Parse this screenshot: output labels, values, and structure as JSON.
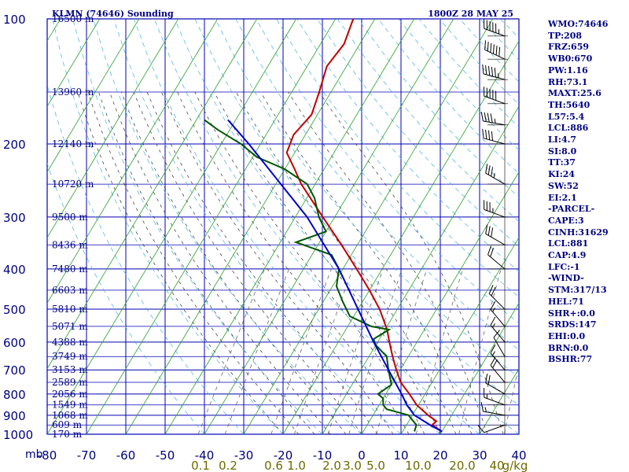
{
  "header": {
    "station_title": "KLMN (74646) Sounding",
    "valid_time": "1800Z 28 MAY 25"
  },
  "chart_data": {
    "type": "line",
    "chart_kind": "Skew-T log-P sounding",
    "y_scale": "log",
    "y_unit_label": "mb",
    "ylim": [
      1000,
      100
    ],
    "xlim": [
      -80,
      40
    ],
    "pressure_ticks": [
      "100",
      "200",
      "300",
      "400",
      "500",
      "600",
      "700",
      "800",
      "900",
      "1000"
    ],
    "temperature_ticks": [
      "-80",
      "-70",
      "-60",
      "-50",
      "-40",
      "-30",
      "-20",
      "-10",
      "0",
      "10",
      "20",
      "30",
      "40"
    ],
    "height_labels": [
      {
        "p": 100,
        "text": "16500 m"
      },
      {
        "p": 150,
        "text": "13960 m"
      },
      {
        "p": 200,
        "text": "12140 m"
      },
      {
        "p": 250,
        "text": "10720 m"
      },
      {
        "p": 300,
        "text": "9500 m"
      },
      {
        "p": 350,
        "text": "8436 m"
      },
      {
        "p": 400,
        "text": "7480 m"
      },
      {
        "p": 450,
        "text": "6603 m"
      },
      {
        "p": 500,
        "text": "5810 m"
      },
      {
        "p": 550,
        "text": "5071 m"
      },
      {
        "p": 600,
        "text": "4388 m"
      },
      {
        "p": 650,
        "text": "3749 m"
      },
      {
        "p": 700,
        "text": "3153 m"
      },
      {
        "p": 750,
        "text": "2589 m"
      },
      {
        "p": 800,
        "text": "2056 m"
      },
      {
        "p": 850,
        "text": "1549 m"
      },
      {
        "p": 900,
        "text": "1068 m"
      },
      {
        "p": 950,
        "text": "609 m"
      },
      {
        "p": 1000,
        "text": "170 m"
      }
    ],
    "mixing_ratio_labels": [
      "0.1",
      "0.2",
      "0.6",
      "1.0",
      "2.0",
      "3.0",
      "5.0",
      "10.0",
      "20.0",
      "40",
      "g/kg"
    ],
    "colors": {
      "background": "#ffffff",
      "grid": "#0000b4",
      "dry_adiabats": "#2ca02c",
      "moist_adiabats": "#1f7f1f",
      "mixing_ratio": "#40b0e0",
      "temperature": "#c00000",
      "dewpoint": "#005500",
      "parcel": "#0000c8"
    },
    "series": [
      {
        "key": "temperature",
        "values": [
          {
            "p": 985,
            "t": 20.0
          },
          {
            "p": 950,
            "t": 16.5
          },
          {
            "p": 930,
            "t": 17.0
          },
          {
            "p": 900,
            "t": 14.0
          },
          {
            "p": 850,
            "t": 9.5
          },
          {
            "p": 800,
            "t": 6.0
          },
          {
            "p": 750,
            "t": 2.0
          },
          {
            "p": 700,
            "t": -1.0
          },
          {
            "p": 650,
            "t": -4.0
          },
          {
            "p": 600,
            "t": -7.0
          },
          {
            "p": 560,
            "t": -9.5
          },
          {
            "p": 500,
            "t": -14.5
          },
          {
            "p": 450,
            "t": -20.0
          },
          {
            "p": 400,
            "t": -26.5
          },
          {
            "p": 350,
            "t": -34.0
          },
          {
            "p": 300,
            "t": -43.0
          },
          {
            "p": 250,
            "t": -53.5
          },
          {
            "p": 230,
            "t": -57.5
          },
          {
            "p": 210,
            "t": -62.0
          },
          {
            "p": 190,
            "t": -63.0
          },
          {
            "p": 170,
            "t": -61.5
          },
          {
            "p": 150,
            "t": -63.0
          },
          {
            "p": 130,
            "t": -65.0
          },
          {
            "p": 115,
            "t": -64.0
          },
          {
            "p": 100,
            "t": -65.5
          }
        ]
      },
      {
        "key": "dewpoint",
        "values": [
          {
            "p": 985,
            "t": 13.0
          },
          {
            "p": 950,
            "t": 12.5
          },
          {
            "p": 900,
            "t": 9.0
          },
          {
            "p": 870,
            "t": 2.5
          },
          {
            "p": 850,
            "t": 1.0
          },
          {
            "p": 820,
            "t": 0.0
          },
          {
            "p": 800,
            "t": -2.0
          },
          {
            "p": 760,
            "t": 0.0
          },
          {
            "p": 700,
            "t": -3.0
          },
          {
            "p": 650,
            "t": -5.5
          },
          {
            "p": 610,
            "t": -10.0
          },
          {
            "p": 590,
            "t": -11.5
          },
          {
            "p": 560,
            "t": -9.0
          },
          {
            "p": 550,
            "t": -14.0
          },
          {
            "p": 520,
            "t": -21.0
          },
          {
            "p": 480,
            "t": -25.0
          },
          {
            "p": 440,
            "t": -29.0
          },
          {
            "p": 400,
            "t": -31.0
          },
          {
            "p": 370,
            "t": -35.0
          },
          {
            "p": 345,
            "t": -46.0
          },
          {
            "p": 325,
            "t": -40.0
          },
          {
            "p": 300,
            "t": -44.0
          },
          {
            "p": 270,
            "t": -48.0
          },
          {
            "p": 250,
            "t": -52.0
          },
          {
            "p": 230,
            "t": -60.0
          },
          {
            "p": 215,
            "t": -69.0
          },
          {
            "p": 200,
            "t": -75.0
          },
          {
            "p": 185,
            "t": -83.0
          },
          {
            "p": 175,
            "t": -88.0
          }
        ]
      },
      {
        "key": "parcel",
        "values": [
          {
            "p": 985,
            "t": 20.0
          },
          {
            "p": 950,
            "t": 16.0
          },
          {
            "p": 900,
            "t": 10.5
          },
          {
            "p": 850,
            "t": 7.0
          },
          {
            "p": 800,
            "t": 4.0
          },
          {
            "p": 700,
            "t": -3.0
          },
          {
            "p": 600,
            "t": -11.0
          },
          {
            "p": 500,
            "t": -20.0
          },
          {
            "p": 400,
            "t": -31.0
          },
          {
            "p": 300,
            "t": -47.0
          },
          {
            "p": 200,
            "t": -73.0
          },
          {
            "p": 175,
            "t": -82.0
          }
        ]
      }
    ],
    "wind_barbs": [
      {
        "p": 110,
        "dir": 290,
        "spd": 55
      },
      {
        "p": 125,
        "dir": 295,
        "spd": 60
      },
      {
        "p": 140,
        "dir": 285,
        "spd": 55
      },
      {
        "p": 160,
        "dir": 290,
        "spd": 50
      },
      {
        "p": 180,
        "dir": 280,
        "spd": 45
      },
      {
        "p": 200,
        "dir": 285,
        "spd": 40
      },
      {
        "p": 250,
        "dir": 300,
        "spd": 35
      },
      {
        "p": 300,
        "dir": 290,
        "spd": 35
      },
      {
        "p": 350,
        "dir": 300,
        "spd": 30
      },
      {
        "p": 400,
        "dir": 310,
        "spd": 20
      },
      {
        "p": 500,
        "dir": 315,
        "spd": 20
      },
      {
        "p": 550,
        "dir": 320,
        "spd": 15
      },
      {
        "p": 600,
        "dir": 320,
        "spd": 15
      },
      {
        "p": 650,
        "dir": 330,
        "spd": 10
      },
      {
        "p": 700,
        "dir": 320,
        "spd": 15
      },
      {
        "p": 750,
        "dir": 320,
        "spd": 20
      },
      {
        "p": 800,
        "dir": 300,
        "spd": 20
      },
      {
        "p": 850,
        "dir": 290,
        "spd": 15
      },
      {
        "p": 900,
        "dir": 280,
        "spd": 15
      },
      {
        "p": 950,
        "dir": 250,
        "spd": 10
      }
    ]
  },
  "stats": [
    "WMO:74646",
    "TP:208",
    "FRZ:659",
    "WB0:670",
    "PW:1.16",
    "RH:73.1",
    "MAXT:25.6",
    "TH:5640",
    "L57:5.4",
    "LCL:886",
    "LI:4.7",
    "SI:8.0",
    "TT:37",
    "KI:24",
    "SW:52",
    "EI:2.1",
    "-PARCEL-",
    "CAPE:3",
    "CINH:31629",
    "LCL:881",
    "CAP:4.9",
    "LFC:-1",
    "-WIND-",
    "STM:317/13",
    "HEL:71",
    "SHR+:0.0",
    "SRDS:147",
    "EHI:0.0",
    "BRN:0.0",
    "BSHR:77"
  ]
}
